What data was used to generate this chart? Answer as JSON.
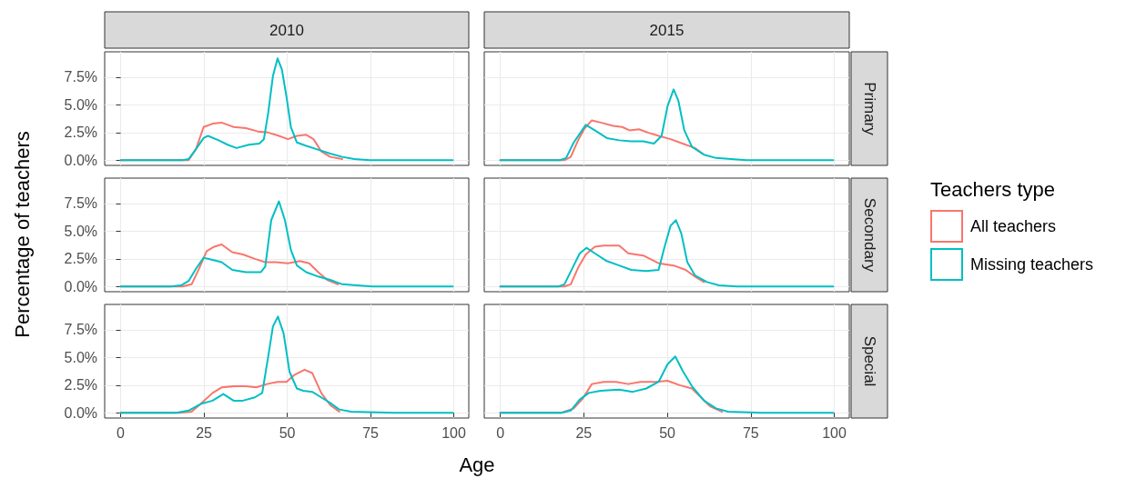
{
  "chart_data": [
    {
      "type": "line",
      "title": "2010",
      "tick_labels": "y",
      "grid": true,
      "legend": "right",
      "legend_title": "Teachers type",
      "xlim": [
        -4.8,
        104.5
      ],
      "xticks": [
        0,
        25,
        50,
        75,
        100
      ],
      "ylim": [
        -0.47,
        9.8
      ],
      "yticks": [
        {
          "value": 0,
          "label": "0.0%"
        },
        {
          "value": 2.5,
          "label": "2.5%"
        },
        {
          "value": 5,
          "label": "5.0%"
        },
        {
          "value": 7.5,
          "label": "7.5%"
        }
      ],
      "series": [
        {
          "name": "All teachers",
          "color": "#f8766d",
          "x": [
            0,
            20.4,
            22.6,
            24.9,
            27.6,
            30.3,
            33.9,
            37.6,
            41.2,
            44.3,
            47.5,
            50.2,
            52.9,
            55.7,
            57.9,
            60.2,
            62.9,
            66.5
          ],
          "values": [
            0,
            0,
            1.0,
            3.0,
            3.3,
            3.4,
            3.0,
            2.9,
            2.6,
            2.5,
            2.2,
            1.9,
            2.2,
            2.3,
            1.9,
            0.8,
            0.3,
            0.1
          ]
        },
        {
          "name": "Missing teachers",
          "color": "#00bfc4",
          "x": [
            0,
            18.6,
            20.4,
            22.6,
            24.9,
            26.2,
            29.4,
            32.1,
            34.8,
            38.5,
            41.6,
            43.0,
            44.3,
            45.7,
            47.1,
            48.4,
            49.8,
            51.1,
            52.9,
            55.7,
            58.8,
            62.9,
            66.5,
            70.1,
            74.7,
            99.7
          ],
          "values": [
            0,
            0,
            0.1,
            1.0,
            2.0,
            2.2,
            1.8,
            1.4,
            1.1,
            1.4,
            1.5,
            1.9,
            4.3,
            7.6,
            9.2,
            8.2,
            5.7,
            3.0,
            1.6,
            1.3,
            1.0,
            0.6,
            0.3,
            0.1,
            0,
            0
          ]
        }
      ]
    },
    {
      "type": "line",
      "title": "2015",
      "y2label": "Primary",
      "tick_labels": false,
      "grid": true,
      "xlim": [
        -4.8,
        104.5
      ],
      "xticks": [
        0,
        25,
        50,
        75,
        100
      ],
      "ylim": [
        -0.47,
        9.8
      ],
      "yticks": [
        0,
        2.5,
        5,
        7.5
      ],
      "series": [
        {
          "color": "#f8766d",
          "x": [
            0,
            19.2,
            21.1,
            23.3,
            25.1,
            27.4,
            30.1,
            33.8,
            36.5,
            38.7,
            41.5,
            44.2,
            47.4,
            51.0,
            54.6,
            58.3,
            60.5
          ],
          "values": [
            0,
            0,
            0.3,
            1.8,
            2.8,
            3.6,
            3.4,
            3.1,
            3.0,
            2.7,
            2.8,
            2.5,
            2.2,
            1.9,
            1.5,
            1.1,
            0.6
          ]
        },
        {
          "color": "#00bfc4",
          "x": [
            0,
            17.9,
            19.7,
            22.0,
            23.8,
            25.6,
            28.3,
            31.9,
            35.6,
            39.2,
            42.8,
            46.0,
            48.3,
            50.1,
            51.9,
            53.3,
            55.1,
            57.4,
            61.0,
            64.6,
            69.1,
            73.7,
            99.7
          ],
          "values": [
            0,
            0,
            0.2,
            1.6,
            2.4,
            3.2,
            2.7,
            2.0,
            1.8,
            1.7,
            1.7,
            1.5,
            2.2,
            4.9,
            6.4,
            5.4,
            2.7,
            1.2,
            0.5,
            0.2,
            0.1,
            0,
            0
          ]
        }
      ]
    },
    {
      "type": "line",
      "ylabel": "Percentage of teachers",
      "tick_labels": "y",
      "grid": true,
      "xlim": [
        -4.8,
        104.5
      ],
      "xticks": [
        0,
        25,
        50,
        75,
        100
      ],
      "ylim": [
        -0.47,
        9.8
      ],
      "yticks": [
        {
          "value": 0,
          "label": "0.0%"
        },
        {
          "value": 2.5,
          "label": "2.5%"
        },
        {
          "value": 5,
          "label": "5.0%"
        },
        {
          "value": 7.5,
          "label": "7.5%"
        }
      ],
      "series": [
        {
          "color": "#f8766d",
          "x": [
            0,
            18.6,
            21.3,
            23.5,
            25.8,
            28.1,
            30.3,
            33.5,
            36.7,
            40.3,
            43.4,
            46.6,
            50.2,
            53.8,
            56.6,
            59.3,
            62.0,
            65.2
          ],
          "values": [
            0,
            0,
            0.2,
            1.6,
            3.2,
            3.6,
            3.8,
            3.1,
            2.9,
            2.5,
            2.2,
            2.2,
            2.1,
            2.3,
            2.1,
            1.3,
            0.6,
            0.2
          ]
        },
        {
          "color": "#00bfc4",
          "x": [
            0,
            14.9,
            18.1,
            20.4,
            22.6,
            24.9,
            27.6,
            30.3,
            33.5,
            37.6,
            42.1,
            43.4,
            45.2,
            47.5,
            49.3,
            51.1,
            52.9,
            55.7,
            59.3,
            62.9,
            66.5,
            71.0,
            75.6,
            99.7
          ],
          "values": [
            0,
            0,
            0.1,
            0.5,
            1.6,
            2.6,
            2.4,
            2.2,
            1.5,
            1.3,
            1.3,
            1.8,
            6.0,
            7.7,
            6.0,
            3.3,
            1.9,
            1.3,
            0.9,
            0.6,
            0.2,
            0.1,
            0,
            0
          ]
        }
      ]
    },
    {
      "type": "line",
      "y2label": "Secondary",
      "tick_labels": false,
      "grid": true,
      "xlim": [
        -4.8,
        104.5
      ],
      "xticks": [
        0,
        25,
        50,
        75,
        100
      ],
      "ylim": [
        -0.47,
        9.8
      ],
      "yticks": [
        0,
        2.5,
        5,
        7.5
      ],
      "series": [
        {
          "color": "#f8766d",
          "x": [
            0,
            19.2,
            21.1,
            23.3,
            25.6,
            28.3,
            31.0,
            35.6,
            38.3,
            42.8,
            47.4,
            51.9,
            55.5,
            58.3,
            61.0
          ],
          "values": [
            0,
            0,
            0.2,
            1.7,
            2.9,
            3.6,
            3.7,
            3.7,
            3.0,
            2.8,
            2.1,
            1.9,
            1.5,
            0.9,
            0.4
          ]
        },
        {
          "color": "#00bfc4",
          "x": [
            0,
            17.4,
            19.2,
            22.0,
            23.8,
            25.8,
            28.3,
            31.9,
            35.6,
            39.2,
            43.7,
            47.4,
            49.2,
            51.0,
            52.6,
            54.2,
            56.0,
            58.3,
            61.9,
            65.5,
            71.0,
            75.5,
            99.7
          ],
          "values": [
            0,
            0,
            0.2,
            1.9,
            3.0,
            3.5,
            3.0,
            2.3,
            1.9,
            1.5,
            1.4,
            1.5,
            3.6,
            5.5,
            6.0,
            4.8,
            2.2,
            1.0,
            0.4,
            0.1,
            0,
            0,
            0
          ]
        }
      ]
    },
    {
      "type": "line",
      "xlabel": "Age",
      "grid": true,
      "xlim": [
        -4.8,
        104.5
      ],
      "xticks": [
        0,
        25,
        50,
        75,
        100
      ],
      "ylim": [
        -0.47,
        9.8
      ],
      "yticks": [
        {
          "value": 0,
          "label": "0.0%"
        },
        {
          "value": 2.5,
          "label": "2.5%"
        },
        {
          "value": 5,
          "label": "5.0%"
        },
        {
          "value": 7.5,
          "label": "7.5%"
        }
      ],
      "series": [
        {
          "color": "#f8766d",
          "x": [
            0,
            17.6,
            21.3,
            24.0,
            27.6,
            30.3,
            33.9,
            37.6,
            40.7,
            43.9,
            47.1,
            49.8,
            52.0,
            55.2,
            57.5,
            60.2,
            62.9,
            65.6
          ],
          "values": [
            0,
            0,
            0.1,
            0.8,
            1.8,
            2.3,
            2.4,
            2.4,
            2.3,
            2.6,
            2.8,
            2.8,
            3.4,
            3.9,
            3.6,
            1.8,
            0.7,
            0.1
          ]
        },
        {
          "color": "#00bfc4",
          "x": [
            0,
            16.7,
            20.4,
            24.0,
            27.6,
            30.8,
            33.9,
            36.7,
            40.3,
            42.5,
            44.3,
            45.7,
            47.2,
            48.9,
            50.7,
            52.9,
            54.8,
            57.5,
            60.2,
            62.9,
            65.6,
            69.2,
            81.9,
            99.7
          ],
          "values": [
            0,
            0,
            0.2,
            0.8,
            1.1,
            1.7,
            1.1,
            1.1,
            1.4,
            1.8,
            5.1,
            7.8,
            8.7,
            7.2,
            3.7,
            2.2,
            2.0,
            1.9,
            1.4,
            0.9,
            0.3,
            0.1,
            0,
            0
          ]
        }
      ]
    },
    {
      "type": "line",
      "y2label": "Special",
      "tick_labels": "x",
      "grid": true,
      "xlim": [
        -4.8,
        104.5
      ],
      "xticks": [
        0,
        25,
        50,
        75,
        100
      ],
      "ylim": [
        -0.47,
        9.8
      ],
      "yticks": [
        0,
        2.5,
        5,
        7.5
      ],
      "series": [
        {
          "color": "#f8766d",
          "x": [
            0,
            18.3,
            22.0,
            24.7,
            27.4,
            31.0,
            34.7,
            38.3,
            41.9,
            46.5,
            50.1,
            53.7,
            57.4,
            60.1,
            62.8,
            66.4
          ],
          "values": [
            0,
            0,
            0.4,
            1.3,
            2.6,
            2.8,
            2.8,
            2.6,
            2.8,
            2.8,
            2.9,
            2.5,
            2.2,
            1.4,
            0.6,
            0.1
          ]
        },
        {
          "color": "#00bfc4",
          "x": [
            0,
            18.3,
            21.1,
            23.8,
            26.5,
            30.1,
            35.6,
            39.7,
            43.7,
            47.4,
            50.1,
            52.4,
            54.6,
            57.4,
            61.0,
            64.6,
            68.2,
            78.2,
            99.7
          ],
          "values": [
            0,
            0,
            0.2,
            1.2,
            1.8,
            2.0,
            2.1,
            1.9,
            2.2,
            2.8,
            4.4,
            5.1,
            3.8,
            2.4,
            1.1,
            0.4,
            0.1,
            0,
            0
          ]
        }
      ]
    }
  ]
}
